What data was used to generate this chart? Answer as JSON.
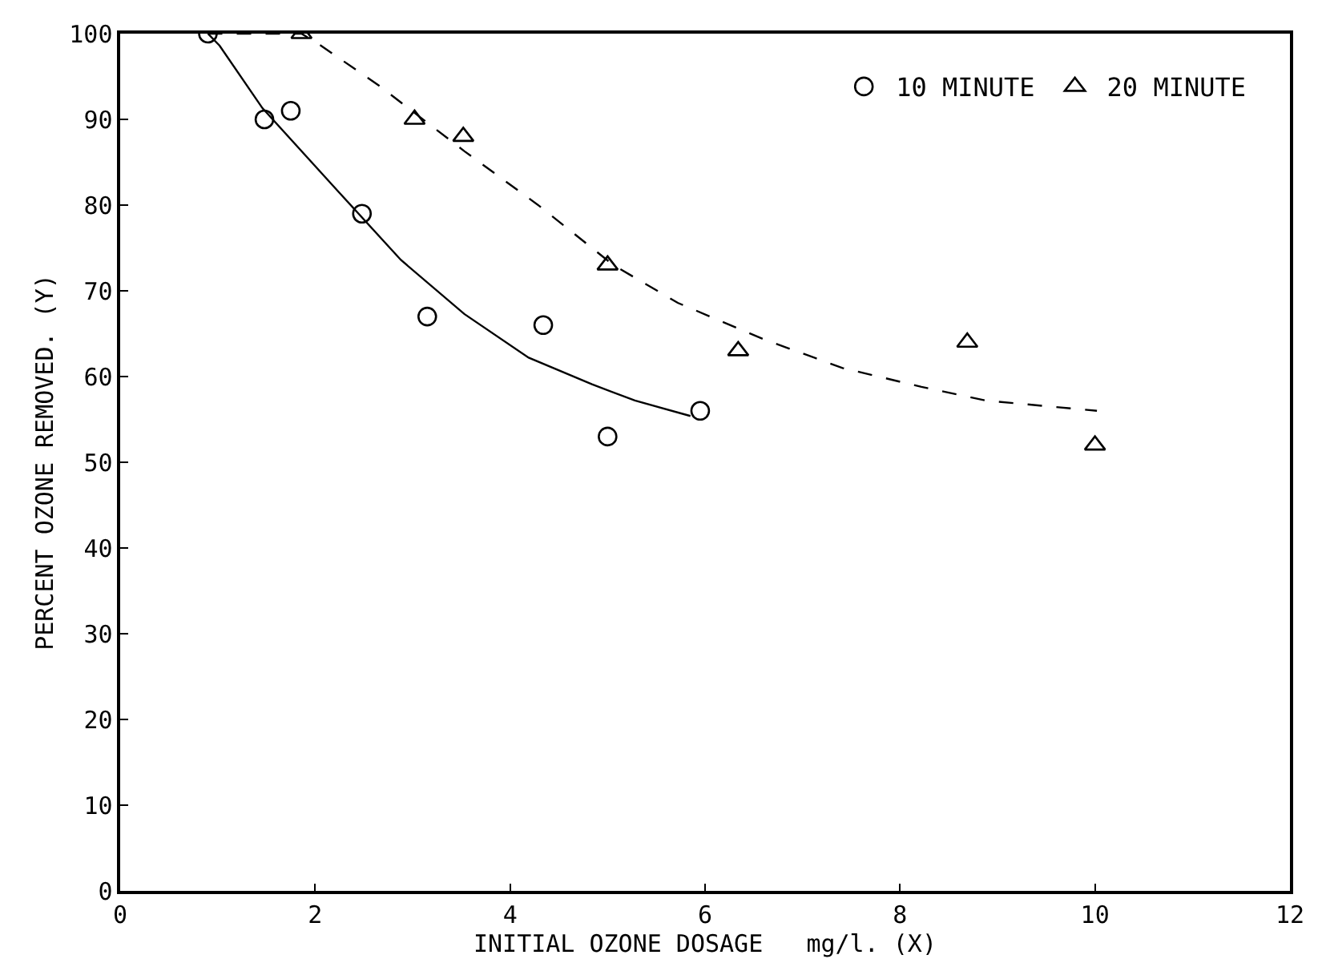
{
  "chart_data": {
    "type": "scatter",
    "xlabel": "INITIAL OZONE DOSAGE   mg/l. (X)",
    "ylabel": "PERCENT OZONE REMOVED. (Y)",
    "xlim": [
      0,
      12
    ],
    "ylim": [
      0,
      100
    ],
    "xticks": [
      0,
      2,
      4,
      6,
      8,
      10,
      12
    ],
    "yticks": [
      0,
      10,
      20,
      30,
      40,
      50,
      60,
      70,
      80,
      90,
      100
    ],
    "legend": "top right",
    "series": [
      {
        "name": "10 MINUTE",
        "color": "#000000",
        "marker": "circle",
        "x": [
          0.9,
          1.48,
          1.75,
          2.48,
          3.15,
          4.34,
          5.0,
          5.95
        ],
        "values": [
          100,
          90,
          91,
          79,
          67,
          66,
          53,
          56
        ]
      },
      {
        "name": "20 MINUTE",
        "color": "#000000",
        "marker": "triangle",
        "x": [
          1.86,
          3.02,
          3.52,
          5.0,
          6.34,
          8.69,
          10.0
        ],
        "values": [
          100,
          90,
          88,
          73,
          63,
          64,
          52
        ]
      },
      {
        "type": "line",
        "color": "#000000",
        "line_style": "solid",
        "x": [
          0.9,
          1.02,
          1.46,
          2.22,
          2.88,
          3.53,
          4.19,
          4.84,
          5.28,
          5.85
        ],
        "values": [
          100,
          98.6,
          91.3,
          81.8,
          73.6,
          67.3,
          62.2,
          59.1,
          57.2,
          55.4
        ]
      },
      {
        "type": "line",
        "color": "#000000",
        "line_style": "dashed",
        "x": [
          0.9,
          1.86,
          2.06,
          2.66,
          3.53,
          4.3,
          5.06,
          5.72,
          6.59,
          7.41,
          8.22,
          8.88,
          10.02
        ],
        "values": [
          100,
          100,
          98.6,
          93.9,
          86.3,
          79.9,
          73.0,
          68.6,
          64.4,
          61.0,
          58.8,
          57.2,
          56.0
        ]
      }
    ]
  }
}
